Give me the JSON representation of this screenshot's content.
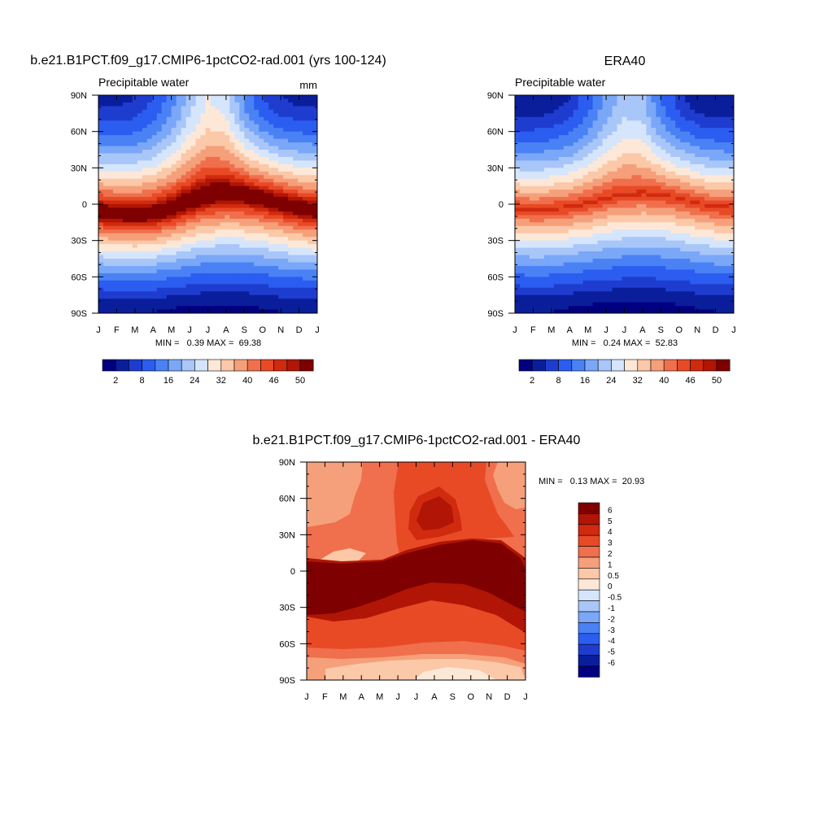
{
  "chart_data": [
    {
      "type": "heatmap",
      "title": "b.e21.B1PCT.f09_g17.CMIP6-1pctCO2-rad.001 (yrs 100-124)",
      "subtitle": "Precipitable water",
      "units": "mm",
      "x_tick_labels": [
        "J",
        "F",
        "M",
        "A",
        "M",
        "J",
        "J",
        "A",
        "S",
        "O",
        "N",
        "D",
        "J"
      ],
      "y_tick_labels": [
        "90N",
        "60N",
        "30N",
        "0",
        "30S",
        "60S",
        "90S"
      ],
      "stats_text": "MIN =   0.39 MAX =  69.38",
      "min": 0.39,
      "max": 69.38,
      "colorbar_levels": [
        "2",
        "8",
        "16",
        "24",
        "32",
        "40",
        "46",
        "50"
      ],
      "field": {
        "itcz_lat": [
          -6,
          -8,
          -9,
          -8,
          -4,
          2,
          7,
          9,
          8,
          5,
          1,
          -3,
          -6
        ],
        "equator_value": 55,
        "nh_pole": [
          4,
          4,
          5,
          8,
          14,
          22,
          28,
          26,
          15,
          8,
          5,
          4,
          4
        ],
        "sh_pole": [
          2,
          2,
          2,
          2,
          1.5,
          1.2,
          1,
          1,
          1.2,
          1.5,
          2,
          2,
          2
        ]
      },
      "colors": [
        "#000080",
        "#0a1e9c",
        "#1e3dcf",
        "#2b5df0",
        "#4a82f5",
        "#7aa7f7",
        "#a9c6f9",
        "#d5e5fb",
        "#fde8d8",
        "#fbc8a8",
        "#f5a07a",
        "#f06f4d",
        "#e84a26",
        "#d02a0f",
        "#b01505",
        "#7e0000"
      ]
    },
    {
      "type": "heatmap",
      "title": "ERA40",
      "subtitle": "Precipitable water",
      "x_tick_labels": [
        "J",
        "F",
        "M",
        "A",
        "M",
        "J",
        "J",
        "A",
        "S",
        "O",
        "N",
        "D",
        "J"
      ],
      "y_tick_labels": [
        "90N",
        "60N",
        "30N",
        "0",
        "30S",
        "60S",
        "90S"
      ],
      "stats_text": "MIN =   0.24 MAX =  52.83",
      "min": 0.24,
      "max": 52.83,
      "colorbar_levels": [
        "2",
        "8",
        "16",
        "24",
        "32",
        "40",
        "46",
        "50"
      ],
      "field": {
        "itcz_lat": [
          -3,
          -5,
          -4,
          -2,
          1,
          5,
          8,
          9,
          8,
          5,
          1,
          -2,
          -3
        ],
        "equator_value": 47,
        "nh_pole": [
          2,
          2,
          3,
          5,
          10,
          17,
          22,
          21,
          12,
          6,
          3,
          2,
          2
        ],
        "sh_pole": [
          2,
          2,
          2,
          1.5,
          1,
          0.8,
          0.7,
          0.7,
          0.8,
          1,
          1.5,
          2,
          2
        ]
      },
      "colors": [
        "#000080",
        "#0a1e9c",
        "#1e3dcf",
        "#2b5df0",
        "#4a82f5",
        "#7aa7f7",
        "#a9c6f9",
        "#d5e5fb",
        "#fde8d8",
        "#fbc8a8",
        "#f5a07a",
        "#f06f4d",
        "#e84a26",
        "#d02a0f",
        "#b01505",
        "#7e0000"
      ]
    },
    {
      "type": "heatmap",
      "title": "b.e21.B1PCT.f09_g17.CMIP6-1pctCO2-rad.001 - ERA40",
      "x_tick_labels": [
        "J",
        "F",
        "M",
        "A",
        "M",
        "J",
        "J",
        "A",
        "S",
        "O",
        "N",
        "D",
        "J"
      ],
      "y_tick_labels": [
        "90N",
        "60N",
        "30N",
        "0",
        "30S",
        "60S",
        "90S"
      ],
      "stats_text": "MIN =   0.13 MAX =  20.93",
      "min": 0.13,
      "max": 20.93,
      "colorbar_levels": [
        "6",
        "5",
        "4",
        "3",
        "2",
        "1",
        "0.5",
        "0",
        "-0.5",
        "-1",
        "-2",
        "-3",
        "-4",
        "-5",
        "-6"
      ],
      "colors": [
        "#7e0000",
        "#b01505",
        "#d02a0f",
        "#e84a26",
        "#f06f4d",
        "#f5a07a",
        "#fbc8a8",
        "#fde8d8",
        "#d5e5fb",
        "#a9c6f9",
        "#7aa7f7",
        "#4a82f5",
        "#2b5df0",
        "#1e3dcf",
        "#0a1e9c",
        "#000080"
      ]
    }
  ]
}
